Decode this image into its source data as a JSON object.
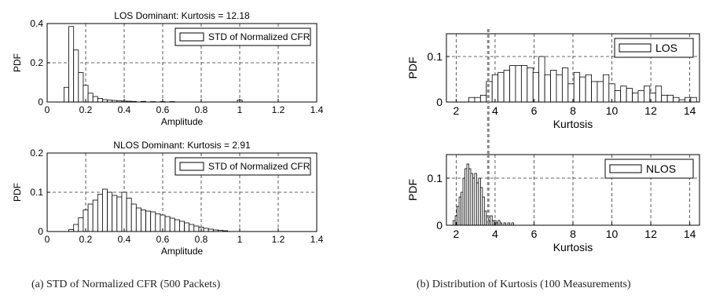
{
  "captions": {
    "a": "(a) STD of Normalized CFR (500 Packets)",
    "b": "(b) Distribution of Kurtosis (100 Measurements)"
  },
  "colors": {
    "bar_fill": "#ffffff",
    "stroke": "#000000",
    "grid": "#333333",
    "threshold": "#888888"
  },
  "chart_data": [
    {
      "id": "los-std",
      "type": "bar",
      "title": "LOS Dominant: Kurtosis = 12.18",
      "xlabel": "Amplitude",
      "ylabel": "PDF",
      "xlim": [
        0,
        1.4
      ],
      "ylim": [
        0,
        0.4
      ],
      "xticks": [
        0,
        0.2,
        0.4,
        0.6,
        0.8,
        1,
        1.2,
        1.4
      ],
      "yticks": [
        0,
        0.2,
        0.4
      ],
      "grid": true,
      "legend": "STD of Normalized CFR",
      "legend_position": "top-right",
      "bin_width": 0.025,
      "x": [
        0.1,
        0.125,
        0.15,
        0.175,
        0.2,
        0.225,
        0.25,
        0.275,
        0.3,
        0.325,
        0.35,
        0.375,
        0.4,
        0.425,
        0.45,
        0.5,
        0.55,
        0.6,
        0.65,
        1.0
      ],
      "values": [
        0.075,
        0.385,
        0.265,
        0.15,
        0.085,
        0.045,
        0.028,
        0.018,
        0.012,
        0.01,
        0.008,
        0.006,
        0.005,
        0.004,
        0.003,
        0.003,
        0.002,
        0.002,
        0.002,
        0.01
      ]
    },
    {
      "id": "nlos-std",
      "type": "bar",
      "title": "NLOS Dominant: Kurtosis = 2.91",
      "xlabel": "Amplitude",
      "ylabel": "PDF",
      "xlim": [
        0,
        1.4
      ],
      "ylim": [
        0,
        0.2
      ],
      "xticks": [
        0,
        0.2,
        0.4,
        0.6,
        0.8,
        1,
        1.2,
        1.4
      ],
      "yticks": [
        0,
        0.1,
        0.2
      ],
      "grid": true,
      "legend": "STD of Normalized CFR",
      "legend_position": "top-right",
      "bin_width": 0.025,
      "x": [
        0.125,
        0.15,
        0.175,
        0.2,
        0.225,
        0.25,
        0.275,
        0.3,
        0.325,
        0.35,
        0.375,
        0.4,
        0.425,
        0.45,
        0.475,
        0.5,
        0.525,
        0.55,
        0.575,
        0.6,
        0.625,
        0.65,
        0.675,
        0.7,
        0.725,
        0.75,
        0.775,
        0.8,
        0.825,
        0.85,
        0.875,
        0.9,
        0.925
      ],
      "values": [
        0.005,
        0.018,
        0.035,
        0.055,
        0.07,
        0.08,
        0.095,
        0.108,
        0.1,
        0.092,
        0.088,
        0.1,
        0.085,
        0.07,
        0.06,
        0.055,
        0.052,
        0.05,
        0.045,
        0.042,
        0.038,
        0.034,
        0.03,
        0.026,
        0.022,
        0.018,
        0.014,
        0.011,
        0.008,
        0.006,
        0.004,
        0.003,
        0.002
      ]
    },
    {
      "id": "los-kurtosis",
      "type": "bar",
      "title": "",
      "xlabel": "Kurtosis",
      "ylabel": "PDF",
      "xlim": [
        1.5,
        14.5
      ],
      "ylim": [
        0,
        0.15
      ],
      "xticks": [
        2,
        4,
        6,
        8,
        10,
        12,
        14
      ],
      "yticks": [
        0,
        0.1
      ],
      "grid": true,
      "legend": "LOS",
      "legend_position": "top-right",
      "bin_width": 0.3,
      "threshold_x": 3.65,
      "x": [
        2.8,
        3.1,
        3.4,
        3.7,
        4.0,
        4.3,
        4.6,
        4.9,
        5.2,
        5.5,
        5.8,
        6.1,
        6.4,
        6.7,
        7.0,
        7.3,
        7.6,
        7.9,
        8.2,
        8.5,
        8.8,
        9.1,
        9.4,
        9.7,
        10.0,
        10.3,
        10.6,
        10.9,
        11.2,
        11.5,
        11.8,
        12.1,
        12.4,
        12.7,
        13.0,
        13.3,
        13.6,
        13.9,
        14.2
      ],
      "values": [
        0.01,
        0.01,
        0.015,
        0.045,
        0.06,
        0.065,
        0.07,
        0.08,
        0.08,
        0.08,
        0.075,
        0.065,
        0.1,
        0.06,
        0.07,
        0.06,
        0.075,
        0.04,
        0.065,
        0.055,
        0.06,
        0.045,
        0.045,
        0.06,
        0.04,
        0.025,
        0.035,
        0.03,
        0.02,
        0.025,
        0.035,
        0.02,
        0.035,
        0.015,
        0.015,
        0.01,
        0.005,
        0.01,
        0.01
      ]
    },
    {
      "id": "nlos-kurtosis",
      "type": "bar",
      "title": "",
      "xlabel": "Kurtosis",
      "ylabel": "PDF",
      "xlim": [
        1.5,
        14.5
      ],
      "ylim": [
        0,
        0.15
      ],
      "xticks": [
        2,
        4,
        6,
        8,
        10,
        12,
        14
      ],
      "yticks": [
        0,
        0.1
      ],
      "grid": true,
      "legend": "NLOS",
      "legend_position": "top-right",
      "bin_width": 0.1,
      "threshold_x": 3.65,
      "x": [
        1.9,
        2.0,
        2.1,
        2.2,
        2.3,
        2.4,
        2.5,
        2.6,
        2.7,
        2.8,
        2.9,
        3.0,
        3.1,
        3.2,
        3.3,
        3.4,
        3.5,
        3.6,
        3.7,
        3.8,
        3.9,
        4.0,
        4.1,
        4.2,
        4.3,
        4.5,
        4.7,
        4.9
      ],
      "values": [
        0.01,
        0.02,
        0.04,
        0.06,
        0.07,
        0.1,
        0.12,
        0.13,
        0.12,
        0.11,
        0.1,
        0.11,
        0.09,
        0.1,
        0.08,
        0.06,
        0.03,
        0.02,
        0.01,
        0.02,
        0.01,
        0.01,
        0.005,
        0.01,
        0.005,
        0.005,
        0.005,
        0.005
      ]
    }
  ]
}
